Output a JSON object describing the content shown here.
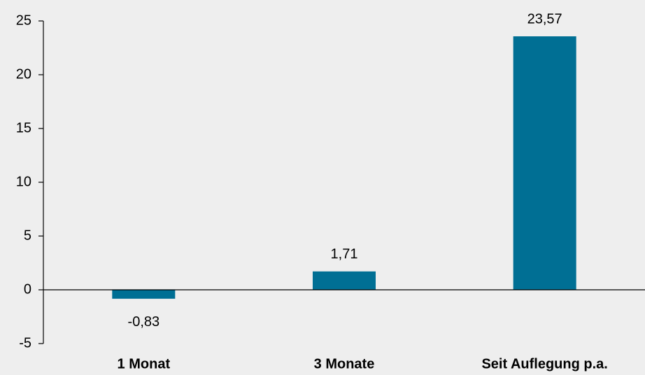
{
  "chart_data": {
    "type": "bar",
    "categories": [
      "1 Monat",
      "3 Monate",
      "Seit Auflegung p.a."
    ],
    "values": [
      -0.83,
      1.71,
      23.57
    ],
    "value_labels": [
      "-0,83",
      "1,71",
      "23,57"
    ],
    "color": "#006f94",
    "ylim": [
      -5,
      25
    ],
    "yticks": [
      -5,
      0,
      5,
      10,
      15,
      20,
      25
    ],
    "grid": false
  }
}
